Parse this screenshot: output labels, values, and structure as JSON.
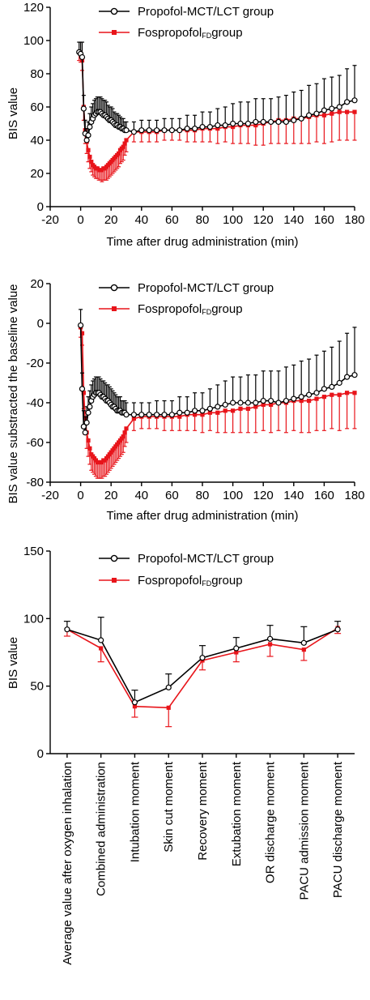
{
  "legend": {
    "propofol": "Propofol-MCT/LCT group",
    "fospropofol_main": "Fospropofol",
    "fospropofol_sub": "FD",
    "fospropofol_tail": "group"
  },
  "colors": {
    "propofol": "#000000",
    "fospropofol": "#e8141a"
  },
  "chart_data": [
    {
      "type": "line",
      "title": "",
      "xlabel": "Time after drug administration (min)",
      "ylabel": "BIS value",
      "xlim": [
        -20,
        180
      ],
      "ylim": [
        0,
        120
      ],
      "xticks": [
        -20,
        0,
        20,
        40,
        60,
        80,
        100,
        120,
        140,
        160,
        180
      ],
      "yticks": [
        0,
        20,
        40,
        60,
        80,
        100,
        120
      ],
      "grid": false,
      "legend_position": "top-center",
      "series": [
        {
          "name": "Propofol-MCT/LCT group",
          "x": [
            -1,
            0,
            1,
            2,
            3,
            4,
            5,
            6,
            7,
            8,
            9,
            10,
            11,
            12,
            13,
            14,
            15,
            16,
            17,
            18,
            19,
            20,
            21,
            22,
            23,
            24,
            25,
            26,
            27,
            28,
            29,
            30,
            35,
            40,
            45,
            50,
            55,
            60,
            65,
            70,
            75,
            80,
            85,
            90,
            95,
            100,
            105,
            110,
            115,
            120,
            125,
            130,
            135,
            140,
            145,
            150,
            155,
            160,
            165,
            170,
            175,
            180
          ],
          "y": [
            93,
            92,
            90,
            59,
            44,
            40,
            43,
            48,
            51,
            53,
            55,
            56,
            57,
            57,
            57,
            56,
            55,
            55,
            54,
            53,
            52,
            52,
            51,
            50,
            49,
            49,
            48,
            48,
            47,
            47,
            46,
            46,
            45,
            46,
            46,
            46,
            46,
            46,
            46,
            47,
            47,
            48,
            48,
            49,
            49,
            50,
            50,
            50,
            51,
            51,
            51,
            51,
            51,
            52,
            53,
            55,
            56,
            58,
            59,
            60,
            63,
            64
          ],
          "err": [
            6,
            7,
            9,
            8,
            8,
            7,
            8,
            8,
            9,
            9,
            9,
            9,
            9,
            9,
            9,
            9,
            9,
            9,
            9,
            8,
            8,
            8,
            8,
            7,
            7,
            7,
            7,
            6,
            6,
            6,
            5,
            5,
            6,
            6,
            6,
            6,
            7,
            7,
            7,
            8,
            8,
            9,
            9,
            10,
            11,
            12,
            13,
            13,
            14,
            14,
            14,
            15,
            16,
            17,
            17,
            18,
            18,
            19,
            19,
            19,
            20,
            21
          ]
        },
        {
          "name": "Fospropofol group",
          "x": [
            -1,
            0,
            1,
            2,
            3,
            4,
            5,
            6,
            7,
            8,
            9,
            10,
            11,
            12,
            13,
            14,
            15,
            16,
            17,
            18,
            19,
            20,
            21,
            22,
            23,
            24,
            25,
            26,
            27,
            28,
            29,
            30,
            35,
            40,
            45,
            50,
            55,
            60,
            65,
            70,
            75,
            80,
            85,
            90,
            95,
            100,
            105,
            110,
            115,
            120,
            125,
            130,
            135,
            140,
            145,
            150,
            155,
            160,
            165,
            170,
            175,
            180
          ],
          "y": [
            93,
            92,
            88,
            60,
            46,
            39,
            34,
            30,
            27,
            25,
            24,
            23,
            23,
            22,
            22,
            22,
            23,
            23,
            24,
            25,
            26,
            27,
            28,
            29,
            30,
            31,
            32,
            34,
            35,
            36,
            38,
            40,
            45,
            45,
            45,
            45,
            46,
            46,
            46,
            46,
            46,
            47,
            47,
            47,
            48,
            48,
            49,
            49,
            49,
            50,
            51,
            52,
            52,
            53,
            53,
            54,
            55,
            55,
            56,
            57,
            57,
            57
          ],
          "err": [
            5,
            5,
            6,
            8,
            8,
            7,
            7,
            7,
            6,
            6,
            6,
            6,
            6,
            6,
            6,
            7,
            7,
            7,
            8,
            8,
            8,
            8,
            8,
            8,
            8,
            8,
            8,
            8,
            8,
            8,
            7,
            7,
            6,
            6,
            6,
            6,
            6,
            6,
            6,
            7,
            7,
            8,
            8,
            9,
            9,
            10,
            11,
            11,
            12,
            13,
            13,
            14,
            14,
            15,
            15,
            16,
            16,
            17,
            17,
            17,
            17,
            17
          ]
        }
      ]
    },
    {
      "type": "line",
      "title": "",
      "xlabel": "Time after drug administration (min)",
      "ylabel": "BIS value substracted the baseline value",
      "xlim": [
        -20,
        180
      ],
      "ylim": [
        -80,
        20
      ],
      "xticks": [
        -20,
        0,
        20,
        40,
        60,
        80,
        100,
        120,
        140,
        160,
        180
      ],
      "yticks": [
        -80,
        -60,
        -40,
        -20,
        0,
        20
      ],
      "grid": false,
      "legend_position": "top-center",
      "series": [
        {
          "name": "Propofol-MCT/LCT group",
          "x": [
            0,
            1,
            2,
            3,
            4,
            5,
            6,
            7,
            8,
            9,
            10,
            11,
            12,
            13,
            14,
            15,
            16,
            17,
            18,
            19,
            20,
            21,
            22,
            23,
            24,
            25,
            26,
            27,
            28,
            29,
            30,
            35,
            40,
            45,
            50,
            55,
            60,
            65,
            70,
            75,
            80,
            85,
            90,
            95,
            100,
            105,
            110,
            115,
            120,
            125,
            130,
            135,
            140,
            145,
            150,
            155,
            160,
            165,
            170,
            175,
            180
          ],
          "y": [
            -1,
            -33,
            -52,
            -55,
            -50,
            -45,
            -42,
            -39,
            -37,
            -36,
            -35,
            -35,
            -35,
            -36,
            -37,
            -37,
            -38,
            -39,
            -39,
            -40,
            -41,
            -42,
            -42,
            -43,
            -44,
            -44,
            -44,
            -45,
            -45,
            -45,
            -46,
            -46,
            -46,
            -46,
            -46,
            -46,
            -46,
            -45,
            -45,
            -44,
            -44,
            -43,
            -42,
            -41,
            -40,
            -40,
            -40,
            -40,
            -39,
            -39,
            -40,
            -39,
            -38,
            -37,
            -36,
            -35,
            -33,
            -32,
            -30,
            -27,
            -26
          ],
          "err": [
            8,
            8,
            8,
            8,
            8,
            8,
            8,
            8,
            8,
            8,
            8,
            8,
            8,
            8,
            8,
            8,
            8,
            8,
            8,
            8,
            8,
            8,
            7,
            7,
            7,
            7,
            7,
            6,
            6,
            6,
            6,
            6,
            6,
            6,
            7,
            7,
            7,
            8,
            8,
            9,
            9,
            10,
            11,
            12,
            13,
            13,
            14,
            14,
            15,
            15,
            16,
            17,
            17,
            18,
            18,
            19,
            19,
            20,
            21,
            22,
            24
          ]
        },
        {
          "name": "Fospropofol group",
          "x": [
            0,
            1,
            2,
            3,
            4,
            5,
            6,
            7,
            8,
            9,
            10,
            11,
            12,
            13,
            14,
            15,
            16,
            17,
            18,
            19,
            20,
            21,
            22,
            23,
            24,
            25,
            26,
            27,
            28,
            29,
            30,
            35,
            40,
            45,
            50,
            55,
            60,
            65,
            70,
            75,
            80,
            85,
            90,
            95,
            100,
            105,
            110,
            115,
            120,
            125,
            130,
            135,
            140,
            145,
            150,
            155,
            160,
            165,
            170,
            175,
            180
          ],
          "y": [
            -2,
            -5,
            -35,
            -48,
            -55,
            -59,
            -63,
            -66,
            -67,
            -68,
            -69,
            -70,
            -70,
            -70,
            -70,
            -69,
            -69,
            -68,
            -67,
            -66,
            -65,
            -64,
            -63,
            -62,
            -61,
            -60,
            -59,
            -58,
            -57,
            -55,
            -53,
            -48,
            -47,
            -47,
            -47,
            -47,
            -47,
            -47,
            -46,
            -46,
            -46,
            -45,
            -45,
            -44,
            -44,
            -43,
            -43,
            -42,
            -41,
            -41,
            -40,
            -40,
            -39,
            -39,
            -39,
            -38,
            -37,
            -36,
            -36,
            -35,
            -35
          ],
          "err": [
            5,
            6,
            8,
            8,
            8,
            8,
            8,
            8,
            8,
            8,
            8,
            8,
            8,
            8,
            8,
            8,
            8,
            8,
            8,
            8,
            8,
            8,
            8,
            8,
            8,
            8,
            8,
            8,
            8,
            7,
            7,
            6,
            6,
            6,
            6,
            7,
            7,
            7,
            8,
            8,
            9,
            9,
            10,
            11,
            11,
            12,
            12,
            13,
            13,
            14,
            14,
            15,
            15,
            16,
            16,
            16,
            17,
            17,
            18,
            18,
            18
          ]
        }
      ]
    },
    {
      "type": "line",
      "title": "",
      "xlabel": "",
      "ylabel": "BIS value",
      "ylim": [
        0,
        150
      ],
      "yticks": [
        0,
        50,
        100,
        150
      ],
      "grid": false,
      "legend_position": "top-center",
      "categories": [
        "Average value after oxygen inhalation",
        "Combined administration",
        "Intubation moment",
        "Skin cut moment",
        "Recovery moment",
        "Extubation moment",
        "OR discharge moment",
        "PACU admission moment",
        "PACU discharge moment"
      ],
      "series": [
        {
          "name": "Propofol-MCT/LCT group",
          "values": [
            92,
            84,
            38,
            49,
            71,
            78,
            85,
            82,
            92
          ],
          "err": [
            6,
            17,
            9,
            10,
            9,
            8,
            10,
            12,
            6
          ]
        },
        {
          "name": "Fospropofol group",
          "values": [
            92,
            78,
            35,
            34,
            69,
            75,
            81,
            77,
            93
          ],
          "err": [
            5,
            10,
            8,
            14,
            7,
            7,
            9,
            8,
            4
          ]
        }
      ]
    }
  ]
}
